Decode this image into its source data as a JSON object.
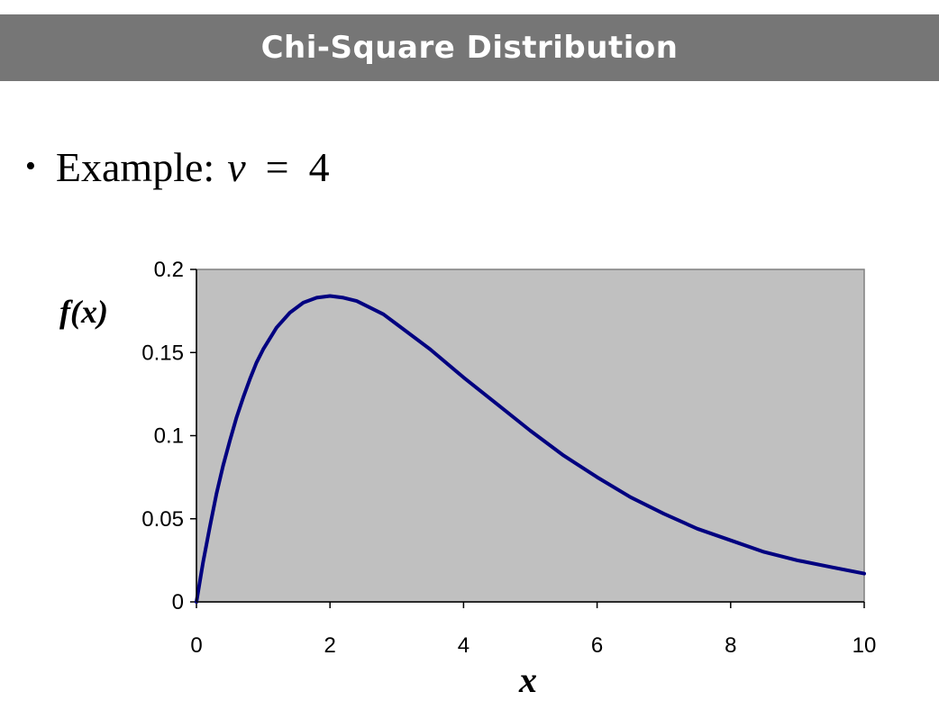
{
  "slide": {
    "title": "Chi-Square Distribution",
    "bullet": {
      "label": "Example:",
      "variable": "v",
      "operator": "=",
      "value": "4"
    }
  },
  "chart_data": {
    "type": "line",
    "ylabel": "f(x)",
    "xlabel": "x",
    "xlim": [
      0,
      10
    ],
    "ylim": [
      0,
      0.2
    ],
    "x_ticks": [
      "0",
      "2",
      "4",
      "6",
      "8",
      "10"
    ],
    "y_ticks": [
      "0",
      "0.05",
      "0.1",
      "0.15",
      "0.2"
    ],
    "grid": false,
    "legend": "none",
    "plot_background": "#c0c0c0",
    "line_color": "#000080",
    "series": [
      {
        "x": [
          0,
          0.1,
          0.2,
          0.3,
          0.4,
          0.5,
          0.6,
          0.7,
          0.8,
          0.9,
          1.0,
          1.2,
          1.4,
          1.6,
          1.8,
          2.0,
          2.2,
          2.4,
          2.6,
          2.8,
          3.0,
          3.5,
          4.0,
          4.5,
          5.0,
          5.5,
          6.0,
          6.5,
          7.0,
          7.5,
          8.0,
          8.5,
          9.0,
          9.5,
          10.0
        ],
        "y": [
          0,
          0.024,
          0.045,
          0.065,
          0.082,
          0.097,
          0.111,
          0.123,
          0.134,
          0.144,
          0.152,
          0.165,
          0.174,
          0.18,
          0.183,
          0.184,
          0.183,
          0.181,
          0.177,
          0.173,
          0.167,
          0.152,
          0.135,
          0.119,
          0.103,
          0.088,
          0.075,
          0.063,
          0.053,
          0.044,
          0.037,
          0.03,
          0.025,
          0.021,
          0.017
        ]
      }
    ]
  }
}
